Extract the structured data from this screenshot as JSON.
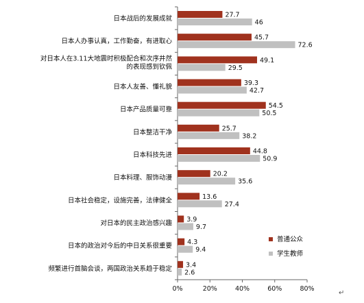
{
  "chart_data": {
    "type": "bar",
    "orientation": "horizontal",
    "categories": [
      [
        "日本战后的发展成就"
      ],
      [
        "日本人办事认真，工作勤奋，有进取心"
      ],
      [
        "对日本人在3.11大地震时积极配合和次序井然",
        "的表现感到钦佩"
      ],
      [
        "日本人友善、懂礼貌"
      ],
      [
        "日本产品质量可靠"
      ],
      [
        "日本整洁干净"
      ],
      [
        "日本科技先进"
      ],
      [
        "日本料理、服饰动漫"
      ],
      [
        "日本社会稳定，设施完善，法律健全"
      ],
      [
        "对日本的民主政治感兴趣"
      ],
      [
        "日本的政治对今后的中日关系很重要"
      ],
      [
        "频繁进行首脑会谈，两国政治关系趋于稳定"
      ]
    ],
    "series": [
      {
        "name": "普通公众",
        "color": "#a0321e",
        "values": [
          27.7,
          45.7,
          49.1,
          39.3,
          54.5,
          25.7,
          44.8,
          20.2,
          13.6,
          3.9,
          4.3,
          3.4
        ]
      },
      {
        "name": "学生教师",
        "color": "#c0c0c0",
        "values": [
          46,
          72.6,
          29.5,
          42.7,
          50.5,
          38.2,
          50.9,
          35.6,
          27.4,
          9.7,
          9.4,
          2.6
        ]
      }
    ],
    "xlim": [
      0,
      80
    ],
    "xticks": [
      "0%",
      "20%",
      "40%",
      "60%",
      "80%"
    ],
    "grid": false,
    "legend": "bottom-right"
  },
  "return_mark": "↵"
}
